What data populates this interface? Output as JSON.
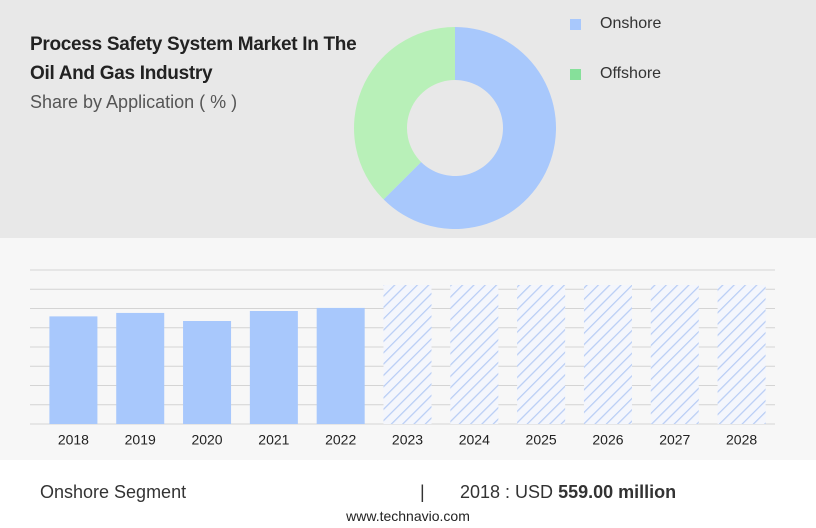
{
  "chart_data": [
    {
      "type": "donut",
      "title": "Process Safety System Market In The Oil And Gas Industry",
      "subtitle": "Share by Application ( % )",
      "categories": [
        "Onshore",
        "Offshore"
      ],
      "values": [
        62.5,
        37.5
      ],
      "colors": [
        "#a8c8fc",
        "#b8f0b8"
      ],
      "legend_colors": [
        "#a8c8fc",
        "#86e09a"
      ]
    },
    {
      "type": "bar",
      "categories": [
        "2018",
        "2019",
        "2020",
        "2021",
        "2022",
        "2023",
        "2024",
        "2025",
        "2026",
        "2027",
        "2028"
      ],
      "values": [
        559,
        577,
        535,
        587,
        603,
        null,
        null,
        null,
        null,
        null,
        null
      ],
      "color": "#a8c8fc",
      "ylim": [
        0,
        800
      ],
      "yticks": [
        0,
        100,
        200,
        300,
        400,
        500,
        600,
        700,
        800
      ],
      "grid": true
    }
  ],
  "footer": {
    "segment": "Onshore Segment",
    "separator": "|",
    "year_label": "2018 : USD",
    "value_label": "559.00 million",
    "site": "www.technavio.com"
  }
}
